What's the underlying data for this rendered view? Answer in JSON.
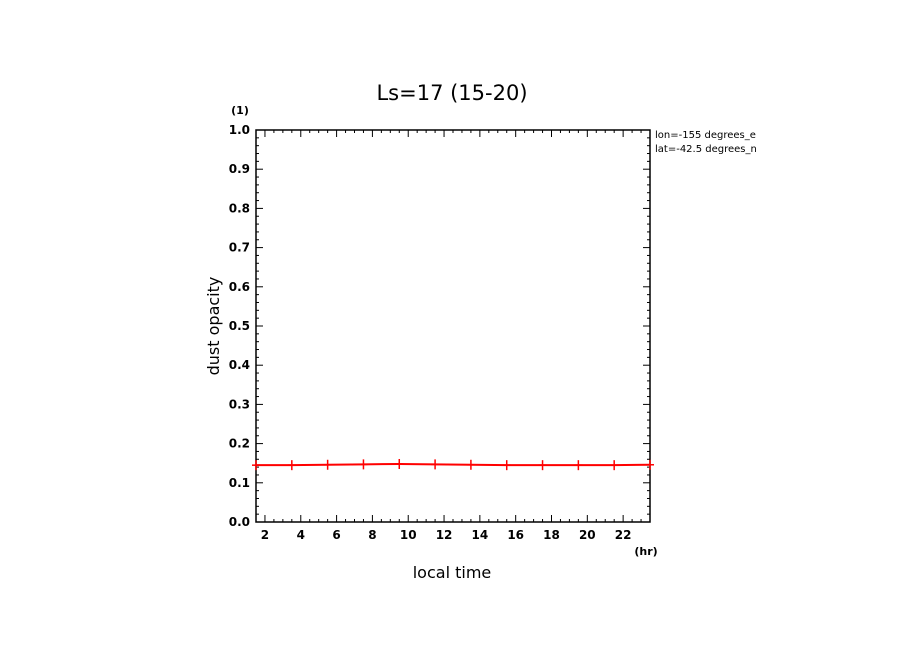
{
  "chart_data": {
    "type": "line",
    "title": "Ls=17 (15-20)",
    "xlabel": "local time",
    "ylabel": "dust opacity",
    "xunit": "(hr)",
    "yunit": "(1)",
    "xlim": [
      1.5,
      23.5
    ],
    "ylim": [
      0.0,
      1.0
    ],
    "xticks": [
      2,
      4,
      6,
      8,
      10,
      12,
      14,
      16,
      18,
      20,
      22
    ],
    "xtick_labels": [
      "2",
      "4",
      "6",
      "8",
      "10",
      "12",
      "14",
      "16",
      "18",
      "20",
      "22"
    ],
    "yticks": [
      0.0,
      0.1,
      0.2,
      0.3,
      0.4,
      0.5,
      0.6,
      0.7,
      0.8,
      0.9,
      1.0
    ],
    "ytick_labels": [
      "0.0",
      "0.1",
      "0.2",
      "0.3",
      "0.4",
      "0.5",
      "0.6",
      "0.7",
      "0.8",
      "0.9",
      "1.0"
    ],
    "annotations": [
      "lon=-155 degrees_e",
      "lat=-42.5 degrees_n"
    ],
    "series": [
      {
        "color": "#ff0000",
        "marker": "plus",
        "x": [
          1.5,
          3.5,
          5.5,
          7.5,
          9.5,
          11.5,
          13.5,
          15.5,
          17.5,
          19.5,
          21.5,
          23.5
        ],
        "y": [
          0.145,
          0.145,
          0.146,
          0.147,
          0.148,
          0.147,
          0.146,
          0.145,
          0.145,
          0.145,
          0.145,
          0.146
        ]
      }
    ],
    "grid": false
  }
}
